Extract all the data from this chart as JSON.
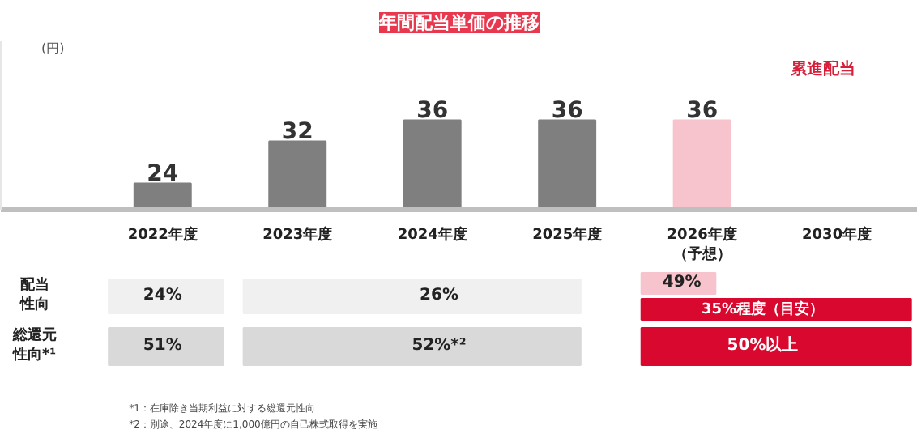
{
  "chart_data": {
    "type": "bar",
    "title": "年間配当単価の推移",
    "ylabel": "(円)",
    "categories": [
      "2022年度",
      "2023年度",
      "2024年度",
      "2025年度",
      "2026年度（予想）",
      "2030年度"
    ],
    "values": [
      24,
      32,
      36,
      36,
      36,
      null
    ],
    "colors": [
      "#7f7f7f",
      "#7f7f7f",
      "#7f7f7f",
      "#7f7f7f",
      "#f7c3cc",
      "#e0243c"
    ],
    "data_labels": true,
    "ylim": [
      19,
      51
    ],
    "tick_labels": "x",
    "grid": false,
    "annotations": [
      "累進配当",
      "配当性向",
      "24%",
      "26%",
      "49%",
      "35%程度（目安）",
      "総還元性向*¹",
      "51%",
      "52%*²",
      "50%以上",
      "*1：在庫除き当期利益に対する総還元性向",
      "*2：別途、2024年度に1,000億円の自己株式取得を実施"
    ]
  }
}
